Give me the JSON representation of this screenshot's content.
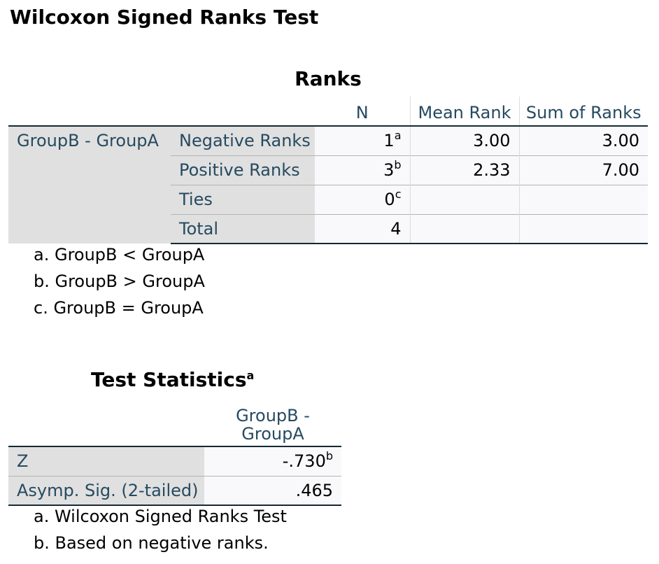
{
  "title": "Wilcoxon Signed Ranks Test",
  "ranks": {
    "title": "Ranks",
    "headers": [
      "N",
      "Mean Rank",
      "Sum of Ranks"
    ],
    "group_label": "GroupB - GroupA",
    "rows": [
      {
        "label": "Negative Ranks",
        "n": "1",
        "n_sup": "a",
        "mean_rank": "3.00",
        "sum_of_ranks": "3.00"
      },
      {
        "label": "Positive Ranks",
        "n": "3",
        "n_sup": "b",
        "mean_rank": "2.33",
        "sum_of_ranks": "7.00"
      },
      {
        "label": "Ties",
        "n": "0",
        "n_sup": "c",
        "mean_rank": "",
        "sum_of_ranks": ""
      },
      {
        "label": "Total",
        "n": "4",
        "n_sup": "",
        "mean_rank": "",
        "sum_of_ranks": ""
      }
    ],
    "footnotes": [
      "a. GroupB < GroupA",
      "b. GroupB > GroupA",
      "c. GroupB = GroupA"
    ]
  },
  "test_statistics": {
    "title": "Test Statistics",
    "title_sup": "a",
    "column_header_line1": "GroupB -",
    "column_header_line2": "GroupA",
    "rows": [
      {
        "label": "Z",
        "value": "-.730",
        "value_sup": "b"
      },
      {
        "label": "Asymp. Sig. (2-tailed)",
        "value": ".465",
        "value_sup": ""
      }
    ],
    "footnotes": [
      "a. Wilcoxon Signed Ranks Test",
      "b. Based on negative ranks."
    ]
  }
}
